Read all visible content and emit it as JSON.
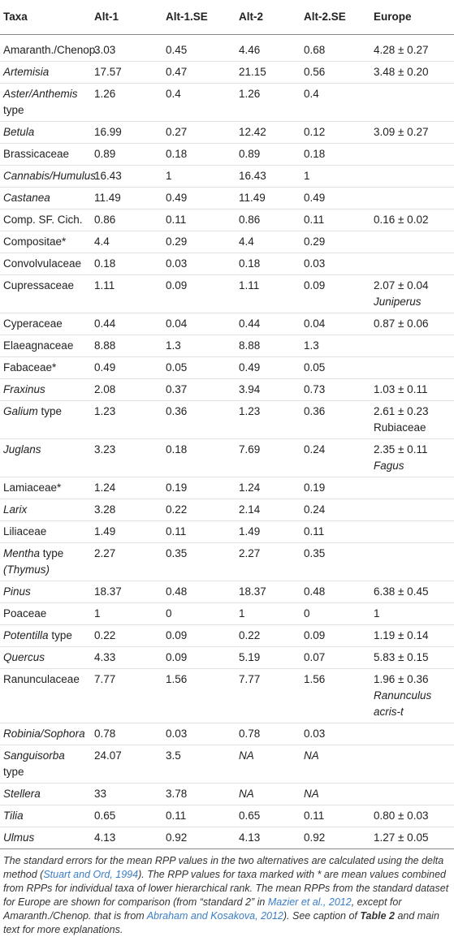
{
  "table": {
    "headers": [
      "Taxa",
      "Alt-1",
      "Alt-1.SE",
      "Alt-2",
      "Alt-2.SE",
      "Europe"
    ],
    "rows": [
      {
        "taxon": "Amaranth./Chenop.",
        "cells": [
          "3.03",
          "0.45",
          "4.46",
          "0.68",
          "4.28 ± 0.27"
        ]
      },
      {
        "taxon": [
          {
            "text": "Artemisia",
            "italic": true
          }
        ],
        "cells": [
          "17.57",
          "0.47",
          "21.15",
          "0.56",
          "3.48 ± 0.20"
        ]
      },
      {
        "taxon": [
          {
            "text": "Aster/Anthemis",
            "italic": true
          },
          {
            "text": "type"
          }
        ],
        "cells": [
          "1.26",
          "0.4",
          "1.26",
          "0.4",
          null
        ]
      },
      {
        "taxon": [
          {
            "text": "Betula",
            "italic": true
          }
        ],
        "cells": [
          "16.99",
          "0.27",
          "12.42",
          "0.12",
          "3.09 ± 0.27"
        ]
      },
      {
        "taxon": "Brassicaceae",
        "cells": [
          "0.89",
          "0.18",
          "0.89",
          "0.18",
          null
        ]
      },
      {
        "taxon": [
          {
            "text": "Cannabis/Humulus",
            "italic": true
          }
        ],
        "cells": [
          "16.43",
          "1",
          "16.43",
          "1",
          null
        ]
      },
      {
        "taxon": [
          {
            "text": "Castanea",
            "italic": true
          }
        ],
        "cells": [
          "11.49",
          "0.49",
          "11.49",
          "0.49",
          null
        ]
      },
      {
        "taxon": "Comp. SF. Cich.",
        "cells": [
          "0.86",
          "0.11",
          "0.86",
          "0.11",
          "0.16 ± 0.02"
        ]
      },
      {
        "taxon": "Compositae*",
        "cells": [
          "4.4",
          "0.29",
          "4.4",
          "0.29",
          null
        ]
      },
      {
        "taxon": "Convolvulaceae",
        "cells": [
          "0.18",
          "0.03",
          "0.18",
          "0.03",
          null
        ]
      },
      {
        "taxon": "Cupressaceae",
        "cells": [
          "1.11",
          "0.09",
          "1.11",
          "0.09",
          [
            {
              "text": "2.07 ± 0.04"
            },
            {
              "text": "Juniperus",
              "italic": true
            }
          ]
        ]
      },
      {
        "taxon": "Cyperaceae",
        "cells": [
          "0.44",
          "0.04",
          "0.44",
          "0.04",
          "0.87 ± 0.06"
        ]
      },
      {
        "taxon": "Elaeagnaceae",
        "cells": [
          "8.88",
          "1.3",
          "8.88",
          "1.3",
          null
        ]
      },
      {
        "taxon": "Fabaceae*",
        "cells": [
          "0.49",
          "0.05",
          "0.49",
          "0.05",
          null
        ]
      },
      {
        "taxon": [
          {
            "text": "Fraxinus",
            "italic": true
          }
        ],
        "cells": [
          "2.08",
          "0.37",
          "3.94",
          "0.73",
          "1.03 ± 0.11"
        ]
      },
      {
        "taxon": [
          {
            "text": "Galium",
            "italic": true
          },
          {
            "text": "type"
          }
        ],
        "cells": [
          "1.23",
          "0.36",
          "1.23",
          "0.36",
          [
            {
              "text": "2.61 ± 0.23"
            },
            {
              "text": "Rubiaceae"
            }
          ]
        ]
      },
      {
        "taxon": [
          {
            "text": "Juglans",
            "italic": true
          }
        ],
        "cells": [
          "3.23",
          "0.18",
          "7.69",
          "0.24",
          [
            {
              "text": "2.35 ± 0.11"
            },
            {
              "text": "Fagus",
              "italic": true
            }
          ]
        ]
      },
      {
        "taxon": "Lamiaceae*",
        "cells": [
          "1.24",
          "0.19",
          "1.24",
          "0.19",
          null
        ]
      },
      {
        "taxon": [
          {
            "text": "Larix",
            "italic": true
          }
        ],
        "cells": [
          "3.28",
          "0.22",
          "2.14",
          "0.24",
          null
        ]
      },
      {
        "taxon": "Liliaceae",
        "cells": [
          "1.49",
          "0.11",
          "1.49",
          "0.11",
          null
        ]
      },
      {
        "taxon": [
          {
            "text": "Mentha",
            "italic": true
          },
          {
            "text": "type"
          },
          {
            "text": "(Thymus)",
            "italic": true
          }
        ],
        "cells": [
          "2.27",
          "0.35",
          "2.27",
          "0.35",
          null
        ]
      },
      {
        "taxon": [
          {
            "text": "Pinus",
            "italic": true
          }
        ],
        "cells": [
          "18.37",
          "0.48",
          "18.37",
          "0.48",
          "6.38 ± 0.45"
        ]
      },
      {
        "taxon": "Poaceae",
        "cells": [
          "1",
          "0",
          "1",
          "0",
          "1"
        ]
      },
      {
        "taxon": [
          {
            "text": "Potentilla",
            "italic": true
          },
          {
            "text": "type"
          }
        ],
        "cells": [
          "0.22",
          "0.09",
          "0.22",
          "0.09",
          "1.19 ± 0.14"
        ]
      },
      {
        "taxon": [
          {
            "text": "Quercus",
            "italic": true
          }
        ],
        "cells": [
          "4.33",
          "0.09",
          "5.19",
          "0.07",
          "5.83 ± 0.15"
        ]
      },
      {
        "taxon": "Ranunculaceae",
        "cells": [
          "7.77",
          "1.56",
          "7.77",
          "1.56",
          [
            {
              "text": "1.96 ± 0.36"
            },
            {
              "text": "Ranunculus acris-t",
              "italic": true
            }
          ]
        ]
      },
      {
        "taxon": [
          {
            "text": "Robinia/Sophora",
            "italic": true
          }
        ],
        "cells": [
          "0.78",
          "0.03",
          "0.78",
          "0.03",
          null
        ]
      },
      {
        "taxon": [
          {
            "text": "Sanguisorba",
            "italic": true
          },
          {
            "text": "type"
          }
        ],
        "cells": [
          "24.07",
          "3.5",
          [
            {
              "text": "NA",
              "italic": true
            }
          ],
          [
            {
              "text": "NA",
              "italic": true
            }
          ],
          null
        ]
      },
      {
        "taxon": [
          {
            "text": "Stellera",
            "italic": true
          }
        ],
        "cells": [
          "33",
          "3.78",
          [
            {
              "text": "NA",
              "italic": true
            }
          ],
          [
            {
              "text": "NA",
              "italic": true
            }
          ],
          null
        ]
      },
      {
        "taxon": [
          {
            "text": "Tilia",
            "italic": true
          }
        ],
        "cells": [
          "0.65",
          "0.11",
          "0.65",
          "0.11",
          "0.80 ± 0.03"
        ]
      },
      {
        "taxon": [
          {
            "text": "Ulmus",
            "italic": true
          }
        ],
        "cells": [
          "4.13",
          "0.92",
          "4.13",
          "0.92",
          "1.27 ± 0.05"
        ]
      }
    ]
  },
  "caption": [
    {
      "text": "The standard errors for the mean RPP values in the two alternatives are calculated using the delta method ("
    },
    {
      "text": "Stuart and Ord, 1994",
      "link": true
    },
    {
      "text": "). The RPP values for taxa marked with * are mean values combined from RPPs for individual taxa of lower hierarchical rank. The mean RPPs from the standard dataset for Europe are shown for comparison (from “standard 2” in "
    },
    {
      "text": "Mazier et al., 2012",
      "link": true
    },
    {
      "text": ", except for Amaranth./Chenop. that is from "
    },
    {
      "text": "Abraham and Kosakova, 2012",
      "link": true
    },
    {
      "text": "). See caption of "
    },
    {
      "text": "Table 2",
      "bold": true
    },
    {
      "text": " and main text for more explanations."
    }
  ]
}
